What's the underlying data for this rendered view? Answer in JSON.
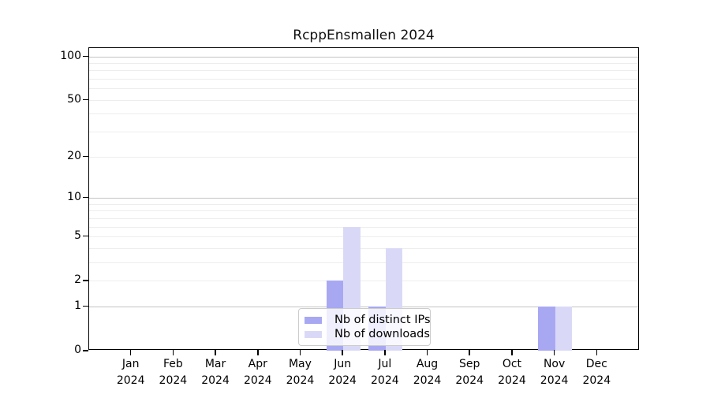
{
  "chart_data": {
    "type": "bar",
    "title": "RcppEnsmallen 2024",
    "categories": [
      "Jan",
      "Feb",
      "Mar",
      "Apr",
      "May",
      "Jun",
      "Jul",
      "Aug",
      "Sep",
      "Oct",
      "Nov",
      "Dec"
    ],
    "category_year_label": "2024",
    "series": [
      {
        "name": "Nb of distinct IPs",
        "color": "#a8a8f2",
        "values": [
          0,
          0,
          0,
          0,
          0,
          2,
          1,
          0,
          0,
          0,
          1,
          0
        ]
      },
      {
        "name": "Nb of downloads",
        "color": "#d9d9f7",
        "values": [
          0,
          0,
          0,
          0,
          0,
          6,
          4,
          0,
          0,
          0,
          1,
          0
        ]
      }
    ],
    "yscale": "log1p",
    "ylim": [
      0,
      114
    ],
    "yticks": [
      0,
      1,
      2,
      5,
      10,
      20,
      50,
      100
    ],
    "gridlines_major": [
      1,
      10,
      100
    ],
    "gridlines_minor": [
      2,
      3,
      4,
      5,
      6,
      7,
      8,
      9,
      20,
      30,
      40,
      50,
      60,
      70,
      80,
      90
    ],
    "grid": true,
    "legend_position": "lower center"
  },
  "colors": {
    "major_grid": "#c4c4c4",
    "minor_grid": "#ededed",
    "axis": "#000000",
    "legend_border": "#cccccc"
  }
}
